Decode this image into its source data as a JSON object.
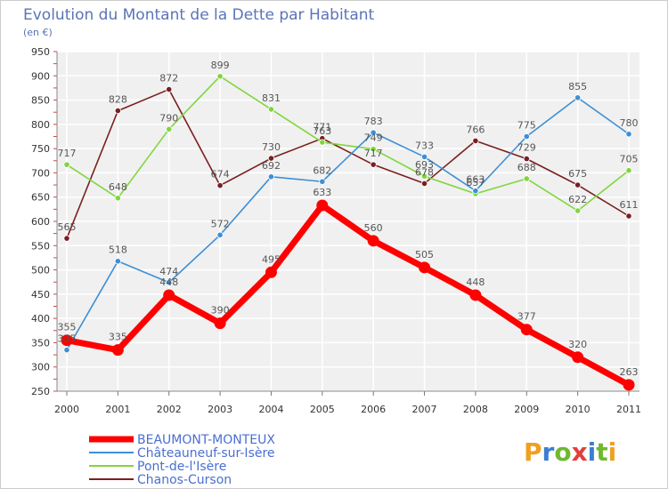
{
  "chart_data": {
    "type": "line",
    "title": "Evolution du Montant de la Dette par Habitant",
    "subtitle": "(en €)",
    "xlabel": "",
    "ylabel": "",
    "categories": [
      "2000",
      "2001",
      "2002",
      "2003",
      "2004",
      "2005",
      "2006",
      "2007",
      "2008",
      "2009",
      "2010",
      "2011"
    ],
    "ylim": [
      250,
      950
    ],
    "yticks": [
      250,
      300,
      350,
      400,
      450,
      500,
      550,
      600,
      650,
      700,
      750,
      800,
      850,
      900,
      950
    ],
    "grid": true,
    "legend_position": "bottom-left",
    "series": [
      {
        "name": "BEAUMONT-MONTEUX",
        "color": "#ff0000",
        "values": [
          355,
          335,
          448,
          390,
          495,
          633,
          560,
          505,
          448,
          377,
          320,
          263
        ]
      },
      {
        "name": "Châteauneuf-sur-Isère",
        "color": "#3d8fd6",
        "values": [
          335,
          518,
          474,
          572,
          692,
          682,
          783,
          733,
          663,
          775,
          855,
          780
        ]
      },
      {
        "name": "Pont-de-l'Isère",
        "color": "#7fd63d",
        "values": [
          717,
          648,
          790,
          899,
          831,
          763,
          749,
          693,
          657,
          688,
          622,
          705
        ]
      },
      {
        "name": "Chanos-Curson",
        "color": "#7a1f1f",
        "values": [
          565,
          828,
          872,
          674,
          730,
          771,
          717,
          678,
          766,
          729,
          675,
          611
        ]
      }
    ]
  },
  "brand": {
    "letters": [
      "P",
      "r",
      "o",
      "x",
      "i",
      "t",
      "i"
    ],
    "colors": [
      "#f0a020",
      "#3a7fd0",
      "#70b830",
      "#e04040",
      "#3a7fd0",
      "#70b830",
      "#f0a020"
    ]
  }
}
